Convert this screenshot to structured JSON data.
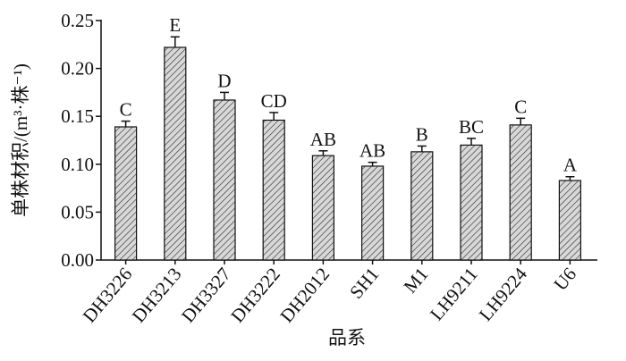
{
  "chart_data": {
    "type": "bar",
    "y_label": "单株材积/(m³·株⁻¹)",
    "x_label": "品系",
    "categories": [
      "DH3226",
      "DH3213",
      "DH3327",
      "DH3222",
      "DH2012",
      "SH1",
      "M1",
      "LH9211",
      "LH9224",
      "U6"
    ],
    "values": [
      0.139,
      0.222,
      0.167,
      0.146,
      0.109,
      0.098,
      0.113,
      0.12,
      0.141,
      0.083
    ],
    "errors": [
      0.006,
      0.011,
      0.008,
      0.008,
      0.005,
      0.004,
      0.006,
      0.007,
      0.007,
      0.004
    ],
    "letters": [
      "C",
      "E",
      "D",
      "CD",
      "AB",
      "AB",
      "B",
      "BC",
      "C",
      "A"
    ],
    "color": "#d8d8d8",
    "ylim": [
      0,
      0.25
    ],
    "yticks": [
      {
        "value": 0,
        "label": "0.00"
      },
      {
        "value": 0.05,
        "label": "0.05"
      },
      {
        "value": 0.1,
        "label": "0.10"
      },
      {
        "value": 0.15,
        "label": "0.15"
      },
      {
        "value": 0.2,
        "label": "0.20"
      },
      {
        "value": 0.25,
        "label": "0.25"
      }
    ]
  }
}
